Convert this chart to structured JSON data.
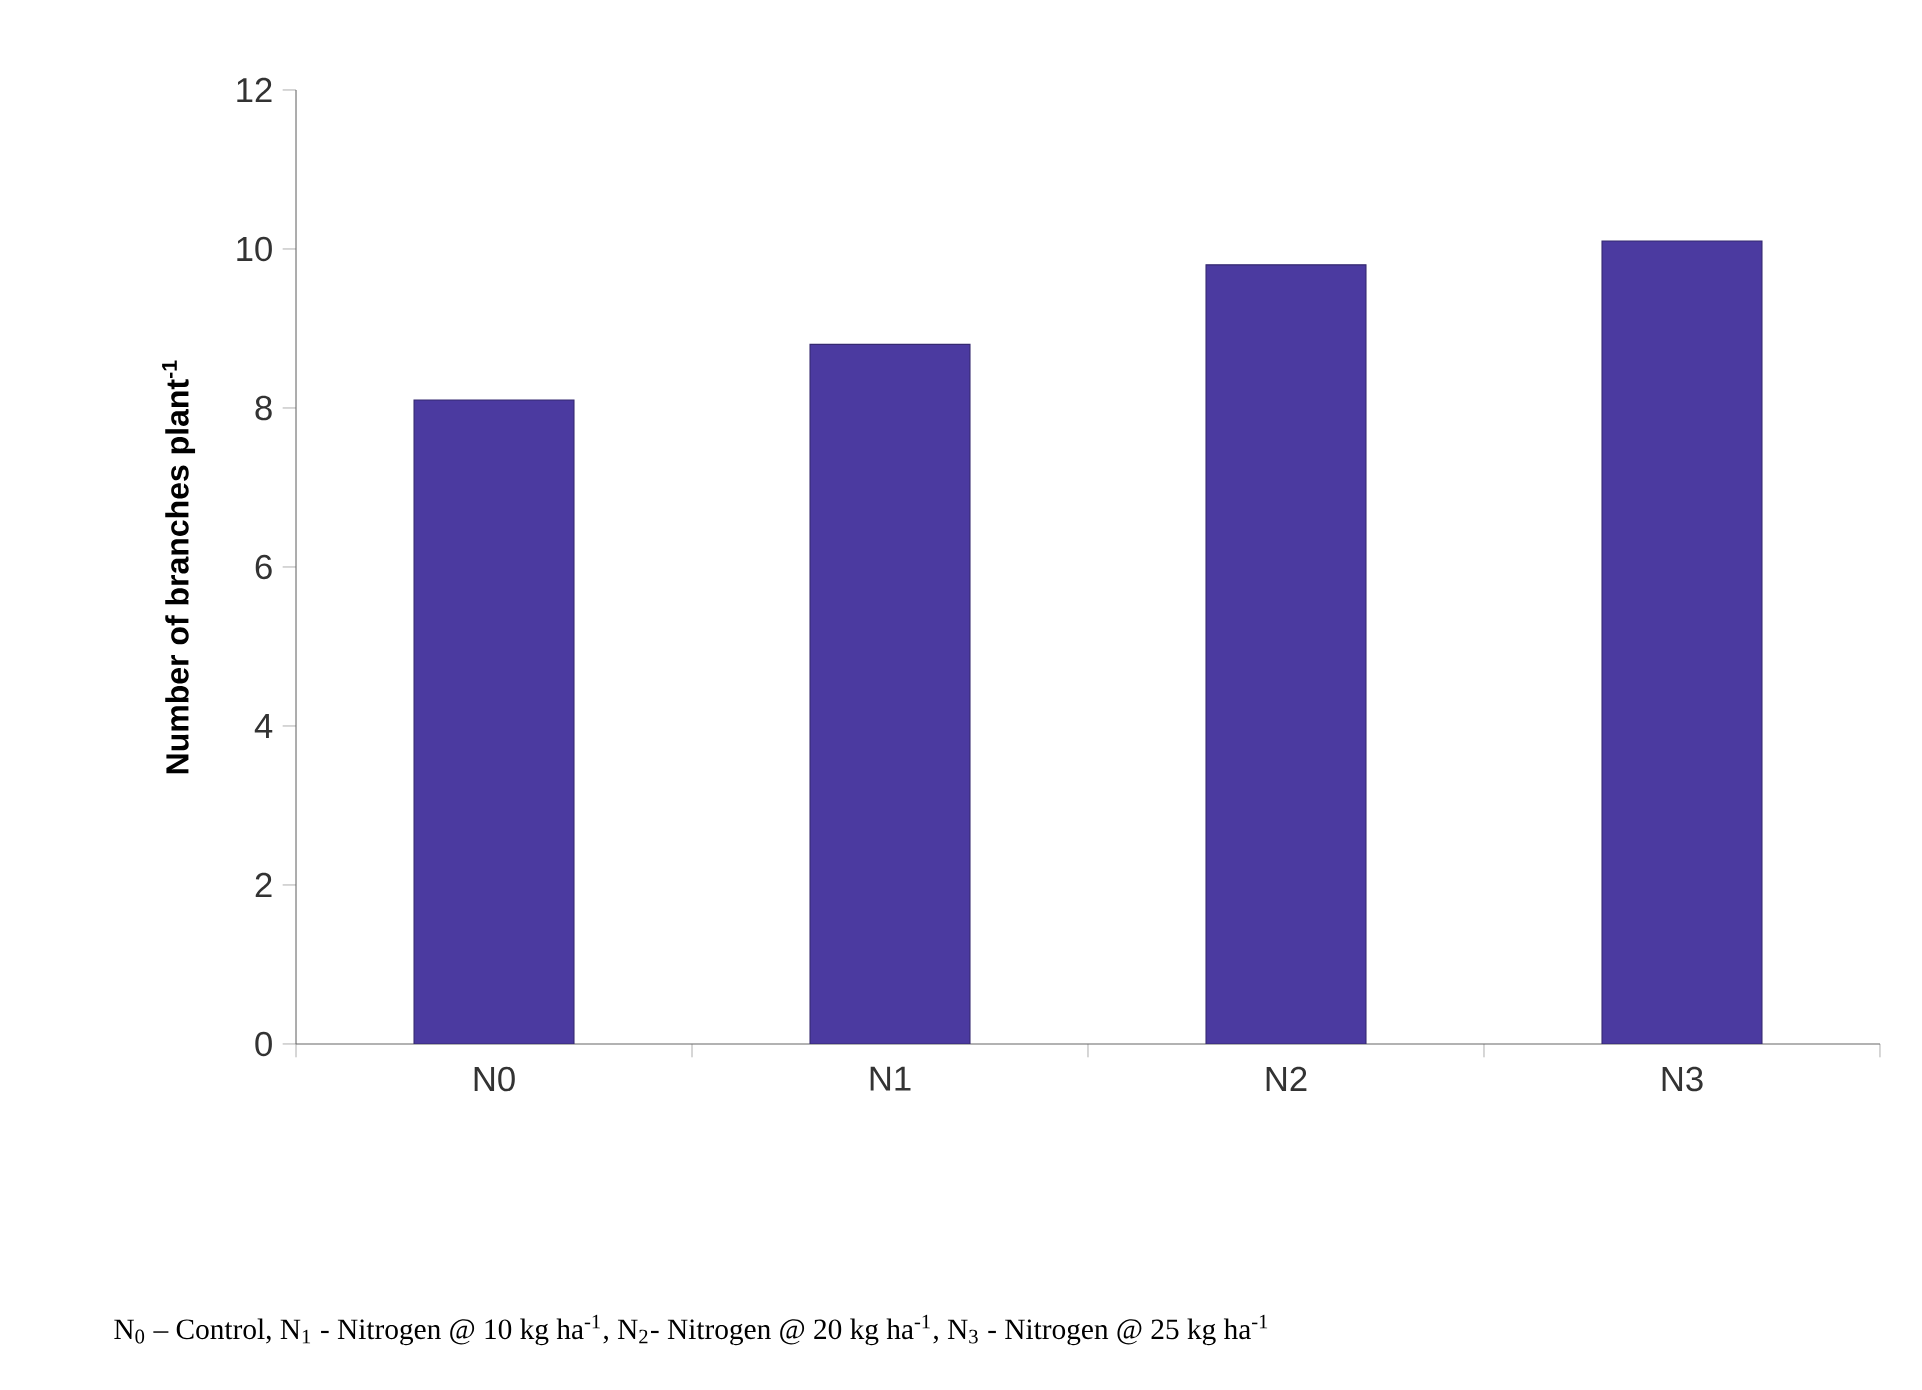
{
  "chart_data": {
    "type": "bar",
    "ylabel": "**Number of branches plant$^{-1}$**",
    "categories": [
      "N0",
      "N1",
      "N2",
      "N3"
    ],
    "values": [
      8.1,
      8.8,
      9.8,
      10.1
    ],
    "color": "#4b3aa0",
    "ylim": [
      0,
      12
    ],
    "yticks": [
      0,
      2,
      4,
      6,
      8,
      10,
      12
    ],
    "grid": false,
    "annotations": [
      "N$_{0}$ – Control, N$_{1}$ - Nitrogen @ 10 kg ha$^{-1}$, N$_{2}$-  Nitrogen @ 20 kg ha$^{-1}$, N$_{3}$ - Nitrogen @ 25 kg ha$^{-1}$"
    ]
  }
}
